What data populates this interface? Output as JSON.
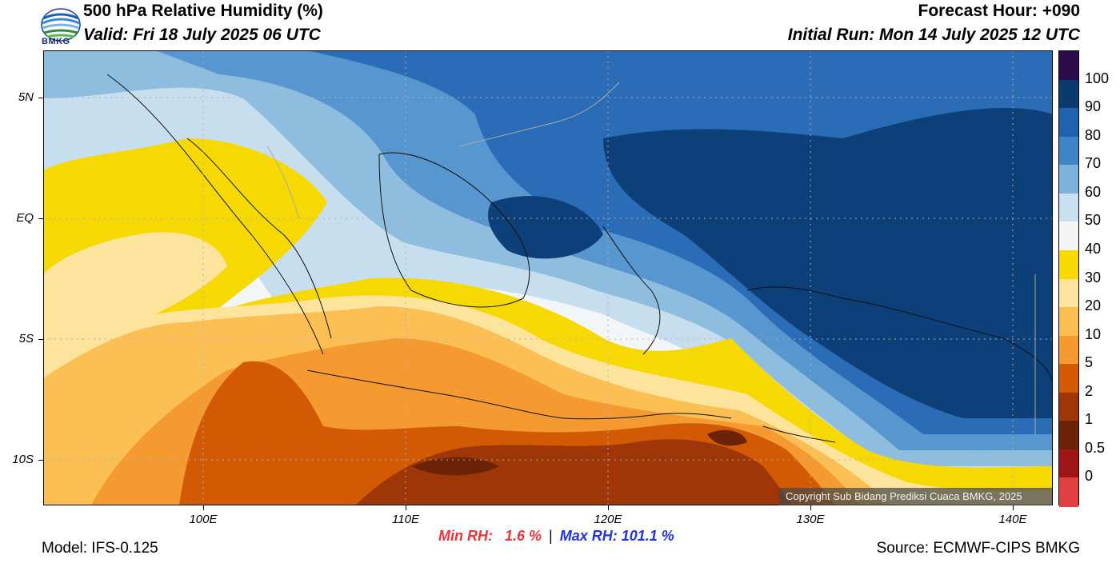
{
  "header": {
    "title": "500 hPa Relative Humidity (%)",
    "valid": "Valid: Fri 18 July 2025 06 UTC",
    "forecast_hour": "Forecast Hour: +090",
    "initial_run": "Initial Run: Mon 14 July 2025 12 UTC"
  },
  "logo": {
    "text": "BMKG",
    "icon": "bmkg-logo-icon"
  },
  "axes": {
    "lat_labels": [
      "5N",
      "EQ",
      "5S",
      "10S"
    ],
    "lon_labels": [
      "100E",
      "110E",
      "120E",
      "130E",
      "140E"
    ]
  },
  "colorbar": {
    "labels": [
      "100",
      "90",
      "80",
      "70",
      "60",
      "50",
      "40",
      "30",
      "20",
      "10",
      "5",
      "2",
      "1",
      "0.5",
      "0"
    ],
    "colors": [
      "#2c0a4c",
      "#0b3a6e",
      "#1f62ad",
      "#3d85c6",
      "#7db2da",
      "#c8e0ef",
      "#f4f4f4",
      "#f7db00",
      "#fde49c",
      "#fbbf54",
      "#f59a30",
      "#d25a04",
      "#9e3608",
      "#6c2206",
      "#a01616",
      "#e04040"
    ]
  },
  "footer": {
    "model": "Model: IFS-0.125",
    "source": "Source: ECMWF-CIPS BMKG",
    "min_label": "Min RH:   1.6 %",
    "separator": "|",
    "max_label": "Max RH: 101.1 %",
    "min_color": "#e8343c",
    "max_color": "#2233dd"
  },
  "copyright": "Copyright Sub Bidang Prediksi Cuaca BMKG, 2025"
}
